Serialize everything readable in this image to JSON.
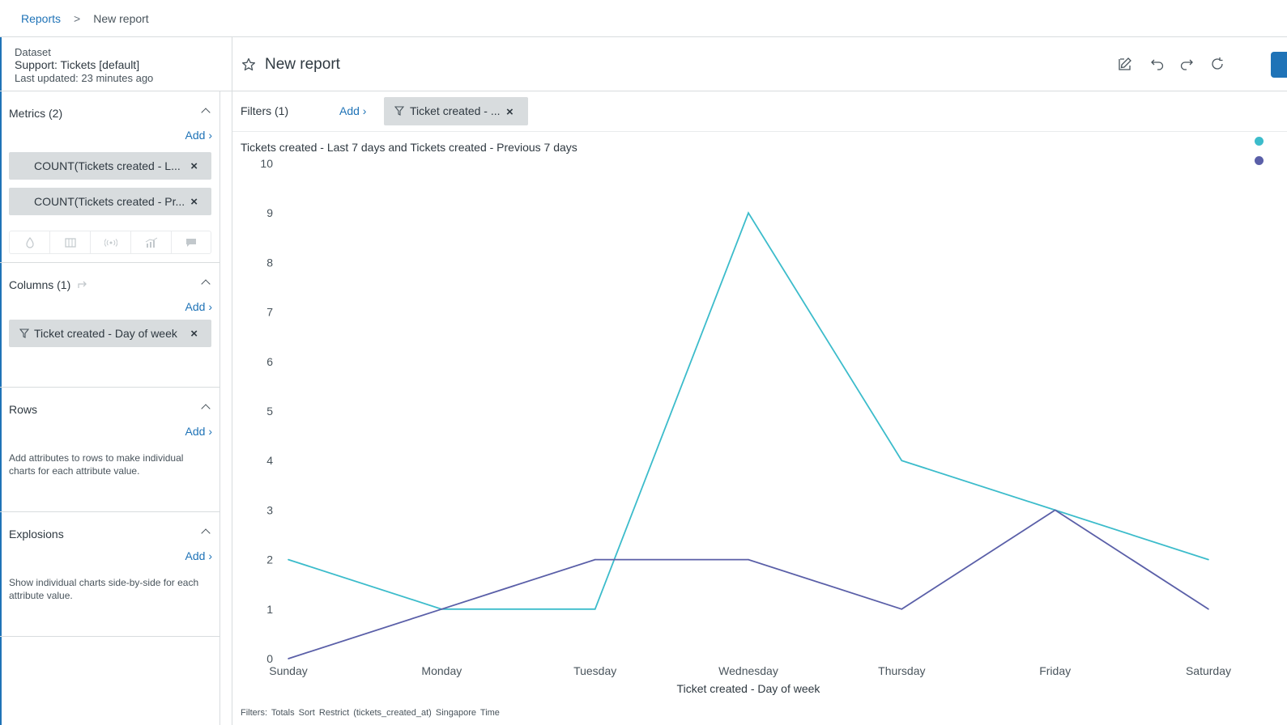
{
  "breadcrumb": {
    "root": "Reports",
    "separator": ">",
    "current": "New report"
  },
  "dataset": {
    "label": "Dataset",
    "name": "Support: Tickets [default]",
    "updated": "Last updated: 23 minutes ago"
  },
  "report": {
    "title": "New report"
  },
  "filters": {
    "label": "Filters (1)",
    "add": "Add",
    "pill": "Ticket created - ..."
  },
  "sidebar": {
    "metrics": {
      "title": "Metrics (2)",
      "add": "Add",
      "items": [
        "COUNT(Tickets created - L...",
        "COUNT(Tickets created - Pr..."
      ]
    },
    "columns": {
      "title": "Columns (1)",
      "add": "Add",
      "items": [
        "Ticket created - Day of week"
      ]
    },
    "rows": {
      "title": "Rows",
      "add": "Add",
      "hint": "Add attributes to rows to make individual charts for each attribute value."
    },
    "explosions": {
      "title": "Explosions",
      "add": "Add",
      "hint": "Show individual charts side-by-side for each attribute value."
    }
  },
  "icons": {
    "tools": [
      "drop-icon",
      "columns-icon",
      "signal-icon",
      "chart-icon",
      "comment-icon"
    ],
    "header": [
      "edit-icon",
      "undo-icon",
      "redo-icon",
      "refresh-icon"
    ]
  },
  "colors": {
    "series1": "#3cbccb",
    "series2": "#5a5fa8",
    "accent": "#1f73b7"
  },
  "footer": "Filters:  Totals  Sort  Restrict (tickets_created_at)  Singapore Time",
  "chart_data": {
    "type": "line",
    "title": "Tickets created - Last 7 days and Tickets created - Previous 7 days",
    "xlabel": "Ticket created - Day of week",
    "ylabel": "",
    "categories": [
      "Sunday",
      "Monday",
      "Tuesday",
      "Wednesday",
      "Thursday",
      "Friday",
      "Saturday"
    ],
    "ylim": [
      0,
      10
    ],
    "yticks": [
      0,
      1,
      2,
      3,
      4,
      5,
      6,
      7,
      8,
      9,
      10
    ],
    "legend": "top-right",
    "grid": false,
    "series": [
      {
        "values": [
          2,
          1,
          1,
          9,
          4,
          3,
          2
        ],
        "color": "#3cbccb"
      },
      {
        "values": [
          0,
          1,
          2,
          2,
          1,
          3,
          1
        ],
        "color": "#5a5fa8"
      }
    ]
  }
}
